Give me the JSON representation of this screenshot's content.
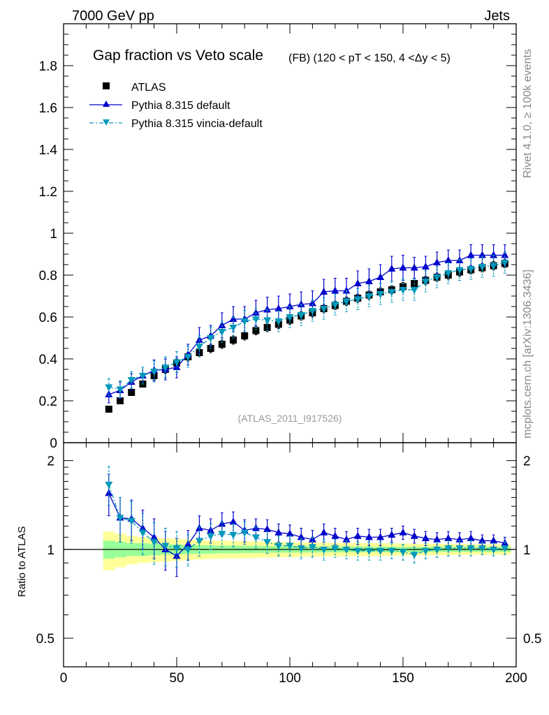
{
  "header": {
    "left": "7000 GeV pp",
    "right": "Jets"
  },
  "side_labels": {
    "rivet": "Rivet 4.1.0, ≥ 100k events",
    "mcplots": "mcplots.cern.ch [arXiv:1306.3436]"
  },
  "colors": {
    "atlas": "#000000",
    "pythia_default": "#0000cc",
    "pythia_vincia": "#0099bb",
    "band_inner": "#99ff99",
    "band_outer": "#ffff99"
  },
  "chart_data": {
    "type": "line",
    "title": "Gap fraction vs Veto scale",
    "subtitle": "(FB) (120 < pT < 150, 4 <Δy < 5)",
    "analysis_ref": "(ATLAS_2011_I917526)",
    "xlabel": "",
    "ylabel": "",
    "xlim": [
      0,
      200
    ],
    "ylim": [
      0,
      2.0
    ],
    "x_ticks": [
      "0",
      "50",
      "100",
      "150",
      "200"
    ],
    "y_ticks": [
      "0",
      "0.2",
      "0.4",
      "0.6",
      "0.8",
      "1",
      "1.2",
      "1.4",
      "1.6",
      "1.8"
    ],
    "x": [
      20,
      25,
      30,
      35,
      40,
      45,
      50,
      55,
      60,
      65,
      70,
      75,
      80,
      85,
      90,
      95,
      100,
      105,
      110,
      115,
      120,
      125,
      130,
      135,
      140,
      145,
      150,
      155,
      160,
      165,
      170,
      175,
      180,
      185,
      190,
      195
    ],
    "series": [
      {
        "name": "ATLAS",
        "marker": "square",
        "values": [
          0.16,
          0.2,
          0.24,
          0.28,
          0.32,
          0.35,
          0.38,
          0.41,
          0.43,
          0.45,
          0.47,
          0.49,
          0.51,
          0.535,
          0.55,
          0.565,
          0.585,
          0.605,
          0.62,
          0.64,
          0.655,
          0.675,
          0.69,
          0.705,
          0.72,
          0.73,
          0.745,
          0.76,
          0.775,
          0.79,
          0.8,
          0.815,
          0.825,
          0.835,
          0.845,
          0.855
        ],
        "errors": [
          0.01,
          0.01,
          0.015,
          0.015,
          0.02,
          0.02,
          0.02,
          0.02,
          0.02,
          0.02,
          0.02,
          0.02,
          0.02,
          0.02,
          0.02,
          0.02,
          0.02,
          0.02,
          0.02,
          0.02,
          0.02,
          0.02,
          0.02,
          0.02,
          0.02,
          0.02,
          0.02,
          0.02,
          0.02,
          0.02,
          0.02,
          0.02,
          0.02,
          0.02,
          0.02,
          0.02
        ]
      },
      {
        "name": "Pythia 8.315 default",
        "marker": "triangle-up",
        "values": [
          0.23,
          0.25,
          0.29,
          0.32,
          0.345,
          0.35,
          0.36,
          0.42,
          0.49,
          0.51,
          0.56,
          0.59,
          0.59,
          0.62,
          0.635,
          0.64,
          0.65,
          0.66,
          0.665,
          0.72,
          0.725,
          0.725,
          0.76,
          0.77,
          0.79,
          0.83,
          0.835,
          0.835,
          0.84,
          0.86,
          0.87,
          0.87,
          0.895,
          0.895,
          0.895,
          0.895
        ],
        "errors": [
          0.04,
          0.04,
          0.04,
          0.04,
          0.05,
          0.05,
          0.05,
          0.05,
          0.06,
          0.05,
          0.06,
          0.06,
          0.06,
          0.06,
          0.06,
          0.06,
          0.06,
          0.06,
          0.06,
          0.06,
          0.06,
          0.06,
          0.06,
          0.06,
          0.06,
          0.06,
          0.06,
          0.05,
          0.05,
          0.05,
          0.05,
          0.05,
          0.05,
          0.05,
          0.05,
          0.05
        ]
      },
      {
        "name": "Pythia 8.315 vincia-default",
        "marker": "triangle-down",
        "values": [
          0.265,
          0.255,
          0.3,
          0.32,
          0.34,
          0.36,
          0.385,
          0.41,
          0.46,
          0.5,
          0.53,
          0.55,
          0.58,
          0.59,
          0.585,
          0.58,
          0.6,
          0.61,
          0.63,
          0.64,
          0.66,
          0.675,
          0.685,
          0.7,
          0.71,
          0.72,
          0.73,
          0.73,
          0.77,
          0.79,
          0.81,
          0.825,
          0.83,
          0.84,
          0.845,
          0.86
        ],
        "errors": [
          0.04,
          0.04,
          0.04,
          0.04,
          0.05,
          0.05,
          0.05,
          0.05,
          0.05,
          0.05,
          0.05,
          0.05,
          0.05,
          0.05,
          0.05,
          0.05,
          0.05,
          0.05,
          0.05,
          0.05,
          0.05,
          0.05,
          0.05,
          0.05,
          0.05,
          0.05,
          0.05,
          0.05,
          0.05,
          0.05,
          0.05,
          0.05,
          0.05,
          0.05,
          0.05,
          0.05
        ]
      }
    ],
    "ratio": {
      "ylabel": "Ratio to ATLAS",
      "ylim": [
        0.4,
        2.3
      ],
      "scale": "log",
      "y_ticks": [
        "0.5",
        "1",
        "2"
      ],
      "band_inner_half_width": [
        0.07,
        0.06,
        0.05,
        0.05,
        0.045,
        0.04,
        0.04,
        0.035,
        0.035,
        0.033,
        0.03,
        0.03,
        0.028,
        0.027,
        0.026,
        0.025,
        0.025,
        0.024,
        0.024,
        0.023,
        0.023,
        0.022,
        0.022,
        0.021,
        0.021,
        0.021,
        0.02,
        0.02,
        0.02,
        0.02,
        0.02,
        0.019,
        0.019,
        0.019,
        0.019,
        0.019
      ],
      "band_outer_half_width": [
        0.15,
        0.13,
        0.11,
        0.1,
        0.095,
        0.09,
        0.085,
        0.08,
        0.075,
        0.072,
        0.07,
        0.068,
        0.066,
        0.064,
        0.062,
        0.06,
        0.058,
        0.056,
        0.055,
        0.054,
        0.053,
        0.052,
        0.051,
        0.05,
        0.049,
        0.048,
        0.047,
        0.046,
        0.045,
        0.044,
        0.043,
        0.042,
        0.041,
        0.04,
        0.04,
        0.04
      ],
      "series": [
        {
          "name": "Pythia 8.315 default",
          "values": [
            1.55,
            1.28,
            1.27,
            1.18,
            1.1,
            1.0,
            0.95,
            1.04,
            1.18,
            1.16,
            1.22,
            1.24,
            1.16,
            1.18,
            1.17,
            1.14,
            1.13,
            1.1,
            1.08,
            1.14,
            1.11,
            1.08,
            1.11,
            1.1,
            1.1,
            1.12,
            1.14,
            1.11,
            1.09,
            1.08,
            1.09,
            1.08,
            1.09,
            1.07,
            1.07,
            1.05
          ],
          "errors": [
            0.25,
            0.22,
            0.2,
            0.18,
            0.17,
            0.15,
            0.14,
            0.12,
            0.12,
            0.11,
            0.11,
            0.1,
            0.1,
            0.09,
            0.09,
            0.08,
            0.08,
            0.08,
            0.08,
            0.08,
            0.07,
            0.07,
            0.07,
            0.07,
            0.07,
            0.06,
            0.06,
            0.06,
            0.06,
            0.06,
            0.06,
            0.06,
            0.06,
            0.05,
            0.05,
            0.05
          ]
        },
        {
          "name": "Pythia 8.315 vincia-default",
          "values": [
            1.66,
            1.28,
            1.25,
            1.14,
            1.06,
            1.03,
            1.01,
            1.0,
            1.07,
            1.11,
            1.13,
            1.12,
            1.14,
            1.1,
            1.06,
            1.03,
            1.03,
            1.01,
            1.02,
            1.0,
            1.01,
            1.0,
            0.99,
            0.99,
            0.99,
            0.99,
            0.98,
            0.96,
            0.99,
            1.0,
            1.01,
            1.01,
            1.01,
            1.01,
            1.0,
            1.01
          ],
          "errors": [
            0.25,
            0.22,
            0.2,
            0.18,
            0.17,
            0.15,
            0.14,
            0.12,
            0.12,
            0.11,
            0.11,
            0.1,
            0.1,
            0.09,
            0.09,
            0.08,
            0.08,
            0.08,
            0.08,
            0.08,
            0.07,
            0.07,
            0.07,
            0.07,
            0.07,
            0.06,
            0.06,
            0.06,
            0.06,
            0.06,
            0.06,
            0.06,
            0.06,
            0.05,
            0.05,
            0.05
          ]
        }
      ]
    }
  }
}
